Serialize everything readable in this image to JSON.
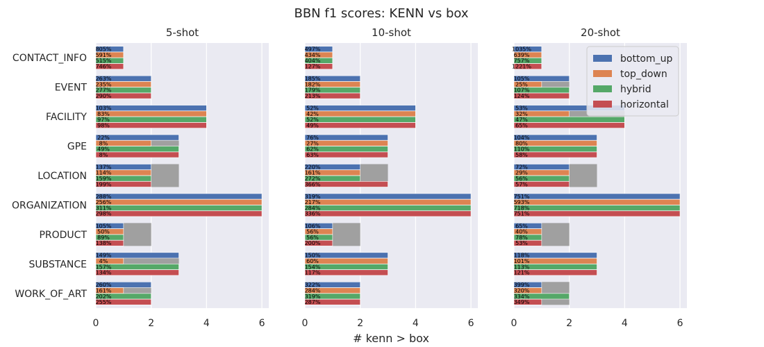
{
  "chart_data": {
    "type": "bar",
    "title": "BBN f1 scores: KENN vs box",
    "xlabel": "# kenn > box",
    "categories": [
      "CONTACT_INFO",
      "EVENT",
      "FACILITY",
      "GPE",
      "LOCATION",
      "ORGANIZATION",
      "PRODUCT",
      "SUBSTANCE",
      "WORK_OF_ART"
    ],
    "series_names": [
      "bottom_up",
      "top_down",
      "hybrid",
      "horizontal"
    ],
    "colors": {
      "bottom_up": "#4c72b0",
      "top_down": "#dd8452",
      "hybrid": "#55a868",
      "horizontal": "#c44e52",
      "total": "#a0a0a0",
      "panel_bg": "#eaeaf2"
    },
    "xlim": [
      0,
      6.25
    ],
    "xticks": [
      "0",
      "2",
      "4",
      "6"
    ],
    "legend": {
      "placement": "top-right",
      "panel": "20-shot"
    },
    "panels": [
      {
        "title": "5-shot",
        "totals": [
          1,
          2,
          4,
          3,
          3,
          6,
          2,
          3,
          2
        ],
        "values": {
          "bottom_up": [
            1,
            2,
            4,
            3,
            2,
            6,
            1,
            3,
            2
          ],
          "top_down": [
            1,
            2,
            4,
            2,
            2,
            6,
            1,
            1,
            1
          ],
          "hybrid": [
            1,
            2,
            4,
            3,
            2,
            6,
            1,
            3,
            2
          ],
          "horizontal": [
            1,
            2,
            4,
            3,
            2,
            6,
            1,
            3,
            2
          ]
        },
        "labels": {
          "bottom_up": [
            "805%",
            "263%",
            "103%",
            "22%",
            "137%",
            "288%",
            "105%",
            "149%",
            "260%"
          ],
          "top_down": [
            "591%",
            "235%",
            "83%",
            "8%",
            "114%",
            "256%",
            "50%",
            "4%",
            "161%"
          ],
          "hybrid": [
            "515%",
            "277%",
            "97%",
            "49%",
            "159%",
            "311%",
            "89%",
            "157%",
            "202%"
          ],
          "horizontal": [
            "746%",
            "290%",
            "98%",
            "8%",
            "199%",
            "298%",
            "138%",
            "134%",
            "255%"
          ]
        }
      },
      {
        "title": "10-shot",
        "totals": [
          1,
          2,
          4,
          3,
          3,
          6,
          2,
          3,
          2
        ],
        "values": {
          "bottom_up": [
            1,
            2,
            4,
            3,
            2,
            6,
            1,
            3,
            2
          ],
          "top_down": [
            1,
            2,
            4,
            3,
            2,
            6,
            1,
            3,
            2
          ],
          "hybrid": [
            1,
            2,
            4,
            3,
            2,
            6,
            1,
            3,
            2
          ],
          "horizontal": [
            1,
            2,
            4,
            3,
            3,
            6,
            1,
            3,
            2
          ]
        },
        "labels": {
          "bottom_up": [
            "497%",
            "185%",
            "52%",
            "76%",
            "220%",
            "319%",
            "106%",
            "150%",
            "322%"
          ],
          "top_down": [
            "434%",
            "182%",
            "42%",
            "27%",
            "161%",
            "217%",
            "56%",
            "60%",
            "284%"
          ],
          "hybrid": [
            "404%",
            "179%",
            "52%",
            "62%",
            "272%",
            "284%",
            "56%",
            "154%",
            "319%"
          ],
          "horizontal": [
            "127%",
            "213%",
            "49%",
            "63%",
            "366%",
            "336%",
            "200%",
            "117%",
            "287%"
          ]
        }
      },
      {
        "title": "20-shot",
        "totals": [
          1,
          2,
          4,
          3,
          3,
          6,
          2,
          3,
          2
        ],
        "values": {
          "bottom_up": [
            1,
            2,
            4,
            3,
            2,
            6,
            1,
            3,
            1
          ],
          "top_down": [
            1,
            1,
            2,
            3,
            2,
            6,
            1,
            3,
            1
          ],
          "hybrid": [
            1,
            2,
            4,
            3,
            2,
            6,
            1,
            3,
            2
          ],
          "horizontal": [
            1,
            2,
            4,
            3,
            2,
            6,
            1,
            3,
            1
          ]
        },
        "labels": {
          "bottom_up": [
            "1035%",
            "105%",
            "53%",
            "104%",
            "72%",
            "751%",
            "65%",
            "118%",
            "399%"
          ],
          "top_down": [
            "639%",
            "25%",
            "32%",
            "80%",
            "29%",
            "593%",
            "40%",
            "101%",
            "320%"
          ],
          "hybrid": [
            "757%",
            "107%",
            "47%",
            "110%",
            "56%",
            "718%",
            "78%",
            "113%",
            "334%"
          ],
          "horizontal": [
            "1221%",
            "124%",
            "65%",
            "58%",
            "57%",
            "751%",
            "53%",
            "121%",
            "349%"
          ]
        }
      }
    ]
  }
}
